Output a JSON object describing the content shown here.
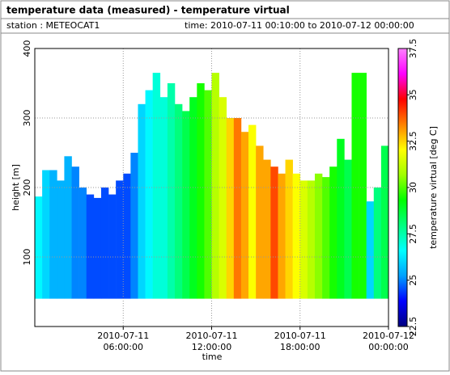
{
  "header": {
    "title": "temperature data (measured) - temperature virtual",
    "station": "station : METEOCAT1",
    "time": "time: 2010-07-11 00:10:00 to 2010-07-12 00:00:00"
  },
  "chart_data": {
    "type": "timeheight",
    "xlabel": "time",
    "ylabel": "height [m]",
    "colorbar_label": "temperature virtual [deg C]",
    "x": [
      "2010-07-11 00:00:00",
      "2010-07-11 00:30:00",
      "2010-07-11 01:00:00",
      "2010-07-11 01:30:00",
      "2010-07-11 02:00:00",
      "2010-07-11 02:30:00",
      "2010-07-11 03:00:00",
      "2010-07-11 03:30:00",
      "2010-07-11 04:00:00",
      "2010-07-11 04:30:00",
      "2010-07-11 05:00:00",
      "2010-07-11 05:30:00",
      "2010-07-11 06:00:00",
      "2010-07-11 06:30:00",
      "2010-07-11 07:00:00",
      "2010-07-11 07:30:00",
      "2010-07-11 08:00:00",
      "2010-07-11 08:30:00",
      "2010-07-11 09:00:00",
      "2010-07-11 09:30:00",
      "2010-07-11 10:00:00",
      "2010-07-11 10:30:00",
      "2010-07-11 11:00:00",
      "2010-07-11 11:30:00",
      "2010-07-11 12:00:00",
      "2010-07-11 12:30:00",
      "2010-07-11 13:00:00",
      "2010-07-11 13:30:00",
      "2010-07-11 14:00:00",
      "2010-07-11 14:30:00",
      "2010-07-11 15:00:00",
      "2010-07-11 15:30:00",
      "2010-07-11 16:00:00",
      "2010-07-11 16:30:00",
      "2010-07-11 17:00:00",
      "2010-07-11 17:30:00",
      "2010-07-11 18:00:00",
      "2010-07-11 18:30:00",
      "2010-07-11 19:00:00",
      "2010-07-11 19:30:00",
      "2010-07-11 20:00:00",
      "2010-07-11 20:30:00",
      "2010-07-11 21:00:00",
      "2010-07-11 21:30:00",
      "2010-07-11 22:00:00",
      "2010-07-11 22:30:00",
      "2010-07-11 23:00:00",
      "2010-07-11 23:30:00"
    ],
    "heights": [
      187,
      225,
      225,
      210,
      245,
      230,
      200,
      190,
      185,
      200,
      190,
      210,
      220,
      250,
      320,
      340,
      365,
      330,
      350,
      320,
      310,
      330,
      350,
      340,
      365,
      330,
      300,
      300,
      280,
      290,
      260,
      240,
      230,
      220,
      240,
      220,
      210,
      210,
      220,
      215,
      230,
      270,
      240,
      365,
      365,
      180,
      200,
      260
    ],
    "temperatures": [
      26.5,
      26,
      25.5,
      25.5,
      25.5,
      25,
      25,
      24.5,
      24.5,
      24.5,
      24.5,
      24.5,
      24.5,
      25,
      26,
      26.5,
      27,
      27,
      27.5,
      28,
      28.5,
      29,
      29.5,
      30,
      31,
      31.5,
      32.5,
      33.5,
      33,
      32,
      33,
      33,
      34,
      33,
      32.5,
      32,
      31.5,
      31,
      30.5,
      30,
      29.5,
      29,
      28.5,
      29.5,
      29.5,
      26,
      28,
      28.5
    ],
    "base_height": 40,
    "xlim": [
      "2010-07-11 00:00:00",
      "2010-07-12 00:00:00"
    ],
    "xticks": [
      {
        "value": "2010-07-11 06:00:00",
        "label": [
          "2010-07-11",
          "06:00:00"
        ]
      },
      {
        "value": "2010-07-11 12:00:00",
        "label": [
          "2010-07-11",
          "12:00:00"
        ]
      },
      {
        "value": "2010-07-11 18:00:00",
        "label": [
          "2010-07-11",
          "18:00:00"
        ]
      },
      {
        "value": "2010-07-12 00:00:00",
        "label": [
          "2010-07-12",
          "00:00:00"
        ]
      }
    ],
    "ylim": [
      0,
      400
    ],
    "yticks": [
      100,
      200,
      300,
      400
    ],
    "clim": [
      22.5,
      37.5
    ],
    "cticks": [
      22.5,
      25,
      27.5,
      30,
      32.5,
      35,
      37.5
    ],
    "colorscale": [
      "#000080",
      "#0000ff",
      "#00a0ff",
      "#00ffff",
      "#00ff80",
      "#00ff00",
      "#a0ff00",
      "#ffff00",
      "#ff8000",
      "#ff0000",
      "#ff00ff",
      "#ff80ff"
    ],
    "grid": true
  }
}
